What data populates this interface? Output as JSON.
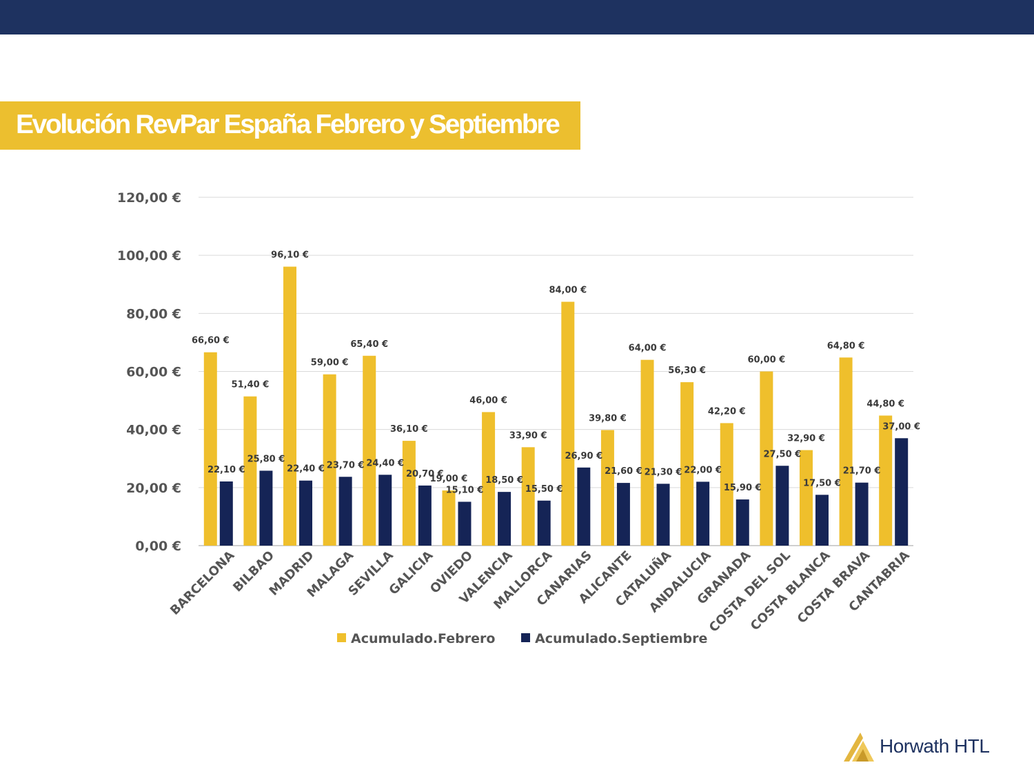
{
  "header": {
    "title": "Evolución RevPar España Febrero y Septiembre"
  },
  "brand": {
    "name": "Horwath HTL",
    "colors": {
      "navy": "#1e3260",
      "gold": "#ecbf2f"
    }
  },
  "chart_data": {
    "type": "bar",
    "categories": [
      "BARCELONA",
      "BILBAO",
      "MADRID",
      "MALAGA",
      "SEVILLA",
      "GALICIA",
      "OVIEDO",
      "VALENCIA",
      "MALLORCA",
      "CANARIAS",
      "ALICANTE",
      "CATALUÑA",
      "ANDALUCIA",
      "GRANADA",
      "COSTA DEL SOL",
      "COSTA BLANCA",
      "COSTA BRAVA",
      "CANTABRIA"
    ],
    "series": [
      {
        "name": "Acumulado.Febrero",
        "color": "#efbf2c",
        "values": [
          66.6,
          51.4,
          96.1,
          59.0,
          65.4,
          36.1,
          19.0,
          46.0,
          33.9,
          84.0,
          39.8,
          64.0,
          56.3,
          42.2,
          60.0,
          32.9,
          64.8,
          44.8
        ],
        "labels": [
          "66,60 €",
          "51,40 €",
          "96,10 €",
          "59,00 €",
          "65,40 €",
          "36,10 €",
          "19,00 €",
          "46,00 €",
          "33,90 €",
          "84,00 €",
          "39,80 €",
          "64,00 €",
          "56,30 €",
          "42,20 €",
          "60,00 €",
          "32,90 €",
          "64,80 €",
          "44,80 €"
        ]
      },
      {
        "name": "Acumulado.Septiembre",
        "color": "#152456",
        "values": [
          22.1,
          25.8,
          22.4,
          23.7,
          24.4,
          20.7,
          15.1,
          18.5,
          15.5,
          26.9,
          21.6,
          21.3,
          22.0,
          15.9,
          27.5,
          17.5,
          21.7,
          37.0
        ],
        "labels": [
          "22,10 €",
          "25,80 €",
          "22,40 €",
          "23,70 €",
          "24,40 €",
          "20,70 €",
          "15,10 €",
          "18,50 €",
          "15,50 €",
          "26,90 €",
          "21,60 €",
          "21,30 €",
          "22,00 €",
          "15,90 €",
          "27,50 €",
          "17,50 €",
          "21,70 €",
          "37,00 €"
        ]
      }
    ],
    "yticks": [
      0,
      20,
      40,
      60,
      80,
      100,
      120
    ],
    "ytick_labels": [
      "0,00 €",
      "20,00 €",
      "40,00 €",
      "60,00 €",
      "80,00 €",
      "100,00 €",
      "120,00 €"
    ],
    "ylim": [
      0,
      120
    ],
    "grid": true,
    "legend": "bottom"
  }
}
